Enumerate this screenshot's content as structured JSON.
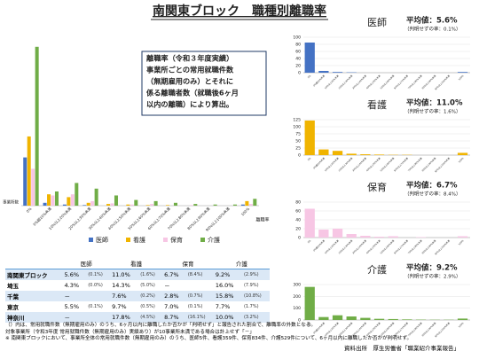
{
  "title": "南関東ブロック　職種別離職率",
  "chart_data": [
    {
      "type": "bar",
      "xlabel": "離職率",
      "ylabel": "事業所数",
      "categories": [
        "0%",
        "0%超10%未満",
        "10%以上20%未満",
        "20%以上30%未満",
        "30%以上40%未満",
        "40%以上50%未満",
        "50%以上60%未満",
        "60%以上70%未満",
        "70%以上80%未満",
        "80%以上90%未満",
        "90%以上100%未満",
        "100%"
      ],
      "series": [
        {
          "name": "医師",
          "color": "#4472c4",
          "values": [
            85,
            5,
            2,
            1,
            0,
            0,
            0,
            0,
            0,
            0,
            0,
            2
          ]
        },
        {
          "name": "看護",
          "color": "#f0b400",
          "values": [
            122,
            20,
            15,
            5,
            3,
            2,
            1,
            1,
            0,
            0,
            0,
            8
          ]
        },
        {
          "name": "保育",
          "color": "#f7c6e4",
          "values": [
            65,
            18,
            20,
            8,
            4,
            2,
            3,
            0,
            1,
            0,
            0,
            3
          ]
        },
        {
          "name": "介護",
          "color": "#70ad47",
          "values": [
            280,
            25,
            40,
            30,
            18,
            10,
            8,
            5,
            3,
            2,
            2,
            12
          ]
        }
      ],
      "ylim": [
        0,
        300
      ],
      "annotation": [
        "離職率（令和３年度実績）",
        "事業所ごとの常用就職件数",
        "（無期雇用のみ）とそれに",
        "係る離職者数（就職後6ヶ月",
        "以内の離職）により算出。"
      ]
    },
    {
      "type": "bar",
      "title": "医師",
      "average": "平均値：5.6%",
      "note": "（判明せずの率：0.1%）",
      "color": "#4472c4",
      "categories": [
        "0%",
        "0%超10%未満",
        "10%以上20%未満",
        "20%以上30%未満",
        "30%以上40%未満",
        "40%以上50%未満",
        "50%以上60%未満",
        "60%以上70%未満",
        "70%以上80%未満",
        "80%以上90%未満",
        "90%以上100%未満",
        "100%"
      ],
      "values": [
        85,
        5,
        2,
        1,
        0,
        0,
        0,
        0,
        0,
        0,
        0,
        2
      ],
      "ylim": [
        0,
        100
      ],
      "yticks": [
        0,
        20,
        40,
        60,
        80,
        100
      ]
    },
    {
      "type": "bar",
      "title": "看護",
      "average": "平均値：11.0%",
      "note": "（判明せずの率：1.6%）",
      "color": "#f0b400",
      "categories": [
        "0%",
        "0%超10%未満",
        "10%以上20%未満",
        "20%以上30%未満",
        "30%以上40%未満",
        "40%以上50%未満",
        "50%以上60%未満",
        "60%以上70%未満",
        "70%以上80%未満",
        "80%以上90%未満",
        "90%以上100%未満",
        "100%"
      ],
      "values": [
        122,
        20,
        15,
        5,
        3,
        2,
        1,
        1,
        0,
        0,
        0,
        8
      ],
      "ylim": [
        0,
        125
      ],
      "yticks": [
        0,
        25,
        50,
        75,
        100,
        125
      ]
    },
    {
      "type": "bar",
      "title": "保育",
      "average": "平均値：6.7%",
      "note": "（判明せずの率：8.4%）",
      "color": "#f7c6e4",
      "categories": [
        "0%",
        "0%超10%未満",
        "10%以上20%未満",
        "20%以上30%未満",
        "30%以上40%未満",
        "40%以上50%未満",
        "50%以上60%未満",
        "60%以上70%未満",
        "70%以上80%未満",
        "80%以上90%未満",
        "90%以上100%未満",
        "100%"
      ],
      "values": [
        65,
        18,
        20,
        8,
        4,
        2,
        3,
        0,
        1,
        0,
        0,
        3
      ],
      "ylim": [
        0,
        80
      ],
      "yticks": [
        0,
        20,
        40,
        60,
        80
      ]
    },
    {
      "type": "bar",
      "title": "介護",
      "average": "平均値：9.2%",
      "note": "（判明せずの率：2.9%）",
      "color": "#70ad47",
      "categories": [
        "0%",
        "0%超10%未満",
        "10%以上20%未満",
        "20%以上30%未満",
        "30%以上40%未満",
        "40%以上50%未満",
        "50%以上60%未満",
        "60%以上70%未満",
        "70%以上80%未満",
        "80%以上90%未満",
        "90%以上100%未満",
        "100%"
      ],
      "values": [
        280,
        25,
        40,
        30,
        18,
        10,
        8,
        5,
        3,
        2,
        2,
        12
      ],
      "ylim": [
        0,
        300
      ],
      "yticks": [
        0,
        100,
        200,
        300
      ]
    }
  ],
  "table": {
    "header": [
      "医師",
      "看護",
      "保育",
      "介護"
    ],
    "rows": [
      [
        "南関東ブロック",
        "5.6%",
        "(0.1%)",
        "11.0%",
        "(1.6%)",
        "6.7%",
        "(8.4%)",
        "9.2%",
        "(2.9%)"
      ],
      [
        "埼玉",
        "4.3%",
        "(0.0%)",
        "14.3%",
        "(5.0%)",
        "－",
        "",
        "16.0%",
        "(7.9%)"
      ],
      [
        "千葉",
        "－",
        "",
        "7.6%",
        "(0.2%)",
        "2.8%",
        "(0.7%)",
        "15.8%",
        "(10.8%)"
      ],
      [
        "東京",
        "5.5%",
        "(0.1%)",
        "9.7%",
        "(0.5%)",
        "7.0%",
        "(0.1%)",
        "7.7%",
        "(1.7%)"
      ],
      [
        "神奈川",
        "－",
        "",
        "17.8%",
        "(4.5%)",
        "8.7%",
        "(16.1%)",
        "10.0%",
        "(3.2%)"
      ]
    ]
  },
  "notes": [
    "（）内は、常用就職件数（無期雇用のみ）のうち、6ヶ月以内に離職したか否かが「判明せず」と報告された割合で、離職率の外数となる。",
    "対象事業所（令和3年度 常用就職件数（無期雇用のみ）実績あり）が10事業所未満である場合は計上せず「－」",
    "※ 南関東ブロックにおいて、事業所全体の常用就職件数（無期雇用のみ）のうち、医師5件、看護359件、保育834件、介護529件について、6ヶ月以内に離職したか否かが判明せず。"
  ],
  "source": "資料出所　厚生労働省「職業紹介事業報告」"
}
